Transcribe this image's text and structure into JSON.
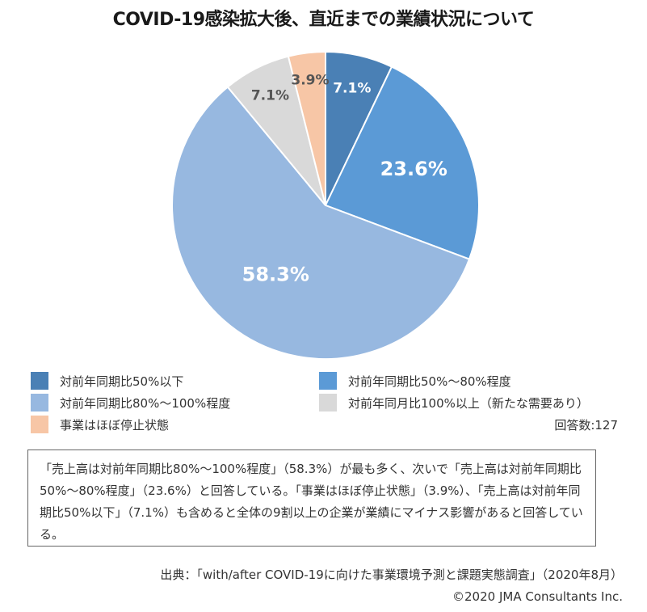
{
  "title": "COVID-19感染拡大後、直近までの業績状況について",
  "chart_data": {
    "type": "pie",
    "title": "COVID-19感染拡大後、直近までの業績状況について",
    "slices": [
      {
        "label": "対前年同期比50%以下",
        "value": 7.1,
        "value_label": "7.1%",
        "color": "#4a80b5",
        "label_color": "#ffffff"
      },
      {
        "label": "対前年同期比50%〜80%程度",
        "value": 23.6,
        "value_label": "23.6%",
        "color": "#5b9ad6",
        "label_color": "#ffffff"
      },
      {
        "label": "対前年同期比80%〜100%程度",
        "value": 58.3,
        "value_label": "58.3%",
        "color": "#97b8e0",
        "label_color": "#ffffff"
      },
      {
        "label": "対前年同月比100%以上（新たな需要あり）",
        "value": 7.1,
        "value_label": "7.1%",
        "color": "#d9d9d9",
        "label_color": "#555555"
      },
      {
        "label": "事業はほぼ停止状態",
        "value": 3.9,
        "value_label": "3.9%",
        "color": "#f7c6a6",
        "label_color": "#555555"
      }
    ],
    "start_angle_deg": 0,
    "direction": "clockwise"
  },
  "legend_count": "回答数:127",
  "summary_text": "「売上高は対前年同期比80%〜100%程度」（58.3%）が最も多く、次いで「売上高は対前年同期比50%〜80%程度」（23.6%）と回答している。「事業はほぼ停止状態」（3.9%）、「売上高は対前年同期比50%以下」（7.1%）も含めると全体の9割以上の企業が業績にマイナス影響があると回答している。",
  "source_line": "出典：「with/after COVID-19に向けた事業環境予測と課題実態調査」（2020年8月）",
  "copyright": "©2020 JMA Consultants Inc."
}
